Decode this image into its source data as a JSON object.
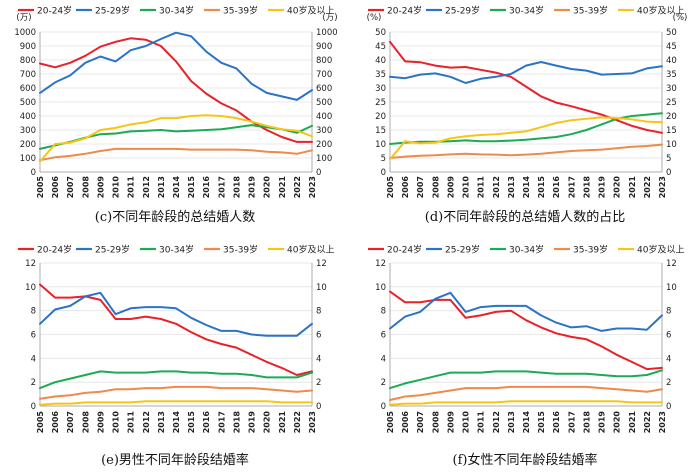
{
  "series_colors": [
    "#e8212a",
    "#2b73c5",
    "#1aab54",
    "#ef8a4a",
    "#f5c518"
  ],
  "chart_data": [
    {
      "type": "line",
      "caption": "(c)不同年龄段的总结婚人数",
      "left_unit": "(万)",
      "right_unit": "(万)",
      "ylim": [
        0,
        1000
      ],
      "yticks": [
        0,
        100,
        200,
        300,
        400,
        500,
        600,
        700,
        800,
        900,
        1000
      ],
      "categories": [
        "2005",
        "2006",
        "2007",
        "2008",
        "2009",
        "2010",
        "2011",
        "2012",
        "2013",
        "2014",
        "2015",
        "2016",
        "2017",
        "2018",
        "2019",
        "2020",
        "2021",
        "2022",
        "2023"
      ],
      "series": [
        {
          "name": "20-24岁",
          "values": [
            775,
            748,
            780,
            830,
            895,
            930,
            955,
            945,
            900,
            790,
            650,
            560,
            490,
            440,
            360,
            300,
            250,
            215,
            215
          ]
        },
        {
          "name": "25-29岁",
          "values": [
            565,
            640,
            690,
            780,
            825,
            790,
            870,
            900,
            950,
            995,
            970,
            860,
            780,
            740,
            630,
            565,
            540,
            515,
            585
          ]
        },
        {
          "name": "30-34岁",
          "values": [
            165,
            190,
            215,
            245,
            270,
            275,
            290,
            295,
            300,
            290,
            295,
            300,
            305,
            320,
            335,
            320,
            305,
            280,
            330
          ]
        },
        {
          "name": "35-39岁",
          "values": [
            85,
            105,
            115,
            130,
            150,
            165,
            165,
            165,
            165,
            165,
            160,
            160,
            160,
            160,
            155,
            145,
            140,
            130,
            155
          ]
        },
        {
          "name": "40岁及以上",
          "values": [
            75,
            200,
            210,
            240,
            300,
            315,
            340,
            355,
            385,
            385,
            400,
            405,
            400,
            385,
            360,
            330,
            305,
            295,
            255
          ]
        }
      ]
    },
    {
      "type": "line",
      "caption": "(d)不同年龄段的总结婚人数的占比",
      "left_unit": "(%)",
      "right_unit": "(%)",
      "ylim": [
        0,
        50
      ],
      "yticks": [
        0,
        5,
        10,
        15,
        20,
        25,
        30,
        35,
        40,
        45,
        50
      ],
      "categories": [
        "2005",
        "2006",
        "2007",
        "2008",
        "2009",
        "2010",
        "2011",
        "2012",
        "2013",
        "2014",
        "2015",
        "2016",
        "2017",
        "2018",
        "2019",
        "2020",
        "2021",
        "2022",
        "2023"
      ],
      "series": [
        {
          "name": "20-24岁",
          "values": [
            46.5,
            39.5,
            39.2,
            38.0,
            37.3,
            37.5,
            36.5,
            35.5,
            34.0,
            30.5,
            27.0,
            24.8,
            23.5,
            22.0,
            20.5,
            18.5,
            16.5,
            15.0,
            14.0
          ]
        },
        {
          "name": "25-29岁",
          "values": [
            34.0,
            33.5,
            34.8,
            35.2,
            34.0,
            31.8,
            33.3,
            34.0,
            35.0,
            38.0,
            39.3,
            38.0,
            36.8,
            36.2,
            34.8,
            35.0,
            35.2,
            37.0,
            37.8
          ]
        },
        {
          "name": "30-34岁",
          "values": [
            10.0,
            10.5,
            10.8,
            10.8,
            11.0,
            11.3,
            11.0,
            11.0,
            11.2,
            11.5,
            12.0,
            12.5,
            13.5,
            15.0,
            17.0,
            19.0,
            20.0,
            20.5,
            21.0
          ]
        },
        {
          "name": "35-39岁",
          "values": [
            5.0,
            5.5,
            5.8,
            6.0,
            6.3,
            6.5,
            6.3,
            6.2,
            6.0,
            6.2,
            6.5,
            7.0,
            7.5,
            7.8,
            8.0,
            8.5,
            9.0,
            9.3,
            9.8
          ]
        },
        {
          "name": "40岁及以上",
          "values": [
            4.5,
            11.0,
            10.2,
            10.5,
            12.0,
            12.8,
            13.2,
            13.5,
            14.0,
            14.5,
            16.0,
            17.5,
            18.5,
            19.0,
            19.5,
            19.3,
            18.8,
            18.0,
            17.8
          ]
        }
      ]
    },
    {
      "type": "line",
      "caption": "(e)男性不同年龄段结婚率",
      "left_unit": "",
      "right_unit": "",
      "ylim": [
        0,
        12
      ],
      "yticks": [
        0,
        2,
        4,
        6,
        8,
        10,
        12
      ],
      "categories": [
        "2005",
        "2006",
        "2007",
        "2008",
        "2009",
        "2010",
        "2011",
        "2012",
        "2013",
        "2014",
        "2015",
        "2016",
        "2017",
        "2018",
        "2019",
        "2020",
        "2021",
        "2022",
        "2023"
      ],
      "series": [
        {
          "name": "20-24岁",
          "values": [
            10.2,
            9.1,
            9.1,
            9.2,
            8.9,
            7.3,
            7.3,
            7.5,
            7.3,
            6.9,
            6.2,
            5.6,
            5.2,
            4.9,
            4.3,
            3.7,
            3.2,
            2.6,
            2.9
          ]
        },
        {
          "name": "25-29岁",
          "values": [
            6.9,
            8.1,
            8.4,
            9.2,
            9.5,
            7.7,
            8.2,
            8.3,
            8.3,
            8.2,
            7.4,
            6.8,
            6.3,
            6.3,
            6.0,
            5.9,
            5.9,
            5.9,
            6.9
          ]
        },
        {
          "name": "30-34岁",
          "values": [
            1.5,
            2.0,
            2.3,
            2.6,
            2.9,
            2.8,
            2.8,
            2.8,
            2.9,
            2.9,
            2.8,
            2.8,
            2.7,
            2.7,
            2.6,
            2.4,
            2.4,
            2.4,
            2.8
          ]
        },
        {
          "name": "35-39岁",
          "values": [
            0.6,
            0.8,
            0.9,
            1.1,
            1.2,
            1.4,
            1.4,
            1.5,
            1.5,
            1.6,
            1.6,
            1.6,
            1.5,
            1.5,
            1.5,
            1.4,
            1.3,
            1.2,
            1.3
          ]
        },
        {
          "name": "40岁及以上",
          "values": [
            0.1,
            0.2,
            0.2,
            0.3,
            0.3,
            0.3,
            0.3,
            0.4,
            0.4,
            0.4,
            0.4,
            0.4,
            0.4,
            0.4,
            0.4,
            0.4,
            0.3,
            0.3,
            0.3
          ]
        }
      ]
    },
    {
      "type": "line",
      "caption": "(f)女性不同年龄段结婚率",
      "left_unit": "",
      "right_unit": "",
      "ylim": [
        0,
        12
      ],
      "yticks": [
        0,
        2,
        4,
        6,
        8,
        10,
        12
      ],
      "categories": [
        "2005",
        "2006",
        "2007",
        "2008",
        "2009",
        "2010",
        "2011",
        "2012",
        "2013",
        "2014",
        "2015",
        "2016",
        "2017",
        "2018",
        "2019",
        "2020",
        "2021",
        "2022",
        "2023"
      ],
      "series": [
        {
          "name": "20-24岁",
          "values": [
            9.6,
            8.7,
            8.7,
            8.9,
            8.9,
            7.4,
            7.6,
            7.9,
            8.0,
            7.2,
            6.6,
            6.1,
            5.8,
            5.6,
            5.0,
            4.3,
            3.7,
            3.1,
            3.2
          ]
        },
        {
          "name": "25-29岁",
          "values": [
            6.5,
            7.5,
            7.9,
            9.0,
            9.5,
            7.9,
            8.3,
            8.4,
            8.4,
            8.4,
            7.6,
            7.0,
            6.6,
            6.7,
            6.3,
            6.5,
            6.5,
            6.4,
            7.6
          ]
        },
        {
          "name": "30-34岁",
          "values": [
            1.5,
            1.9,
            2.2,
            2.5,
            2.8,
            2.8,
            2.8,
            2.9,
            2.9,
            2.9,
            2.8,
            2.7,
            2.7,
            2.7,
            2.6,
            2.5,
            2.5,
            2.6,
            3.0
          ]
        },
        {
          "name": "35-39岁",
          "values": [
            0.5,
            0.8,
            0.9,
            1.1,
            1.3,
            1.5,
            1.5,
            1.5,
            1.6,
            1.6,
            1.6,
            1.6,
            1.6,
            1.6,
            1.5,
            1.4,
            1.3,
            1.2,
            1.4
          ]
        },
        {
          "name": "40岁及以上",
          "values": [
            0.1,
            0.2,
            0.2,
            0.3,
            0.3,
            0.3,
            0.3,
            0.3,
            0.4,
            0.4,
            0.4,
            0.4,
            0.4,
            0.4,
            0.4,
            0.4,
            0.3,
            0.3,
            0.3
          ]
        }
      ]
    }
  ]
}
